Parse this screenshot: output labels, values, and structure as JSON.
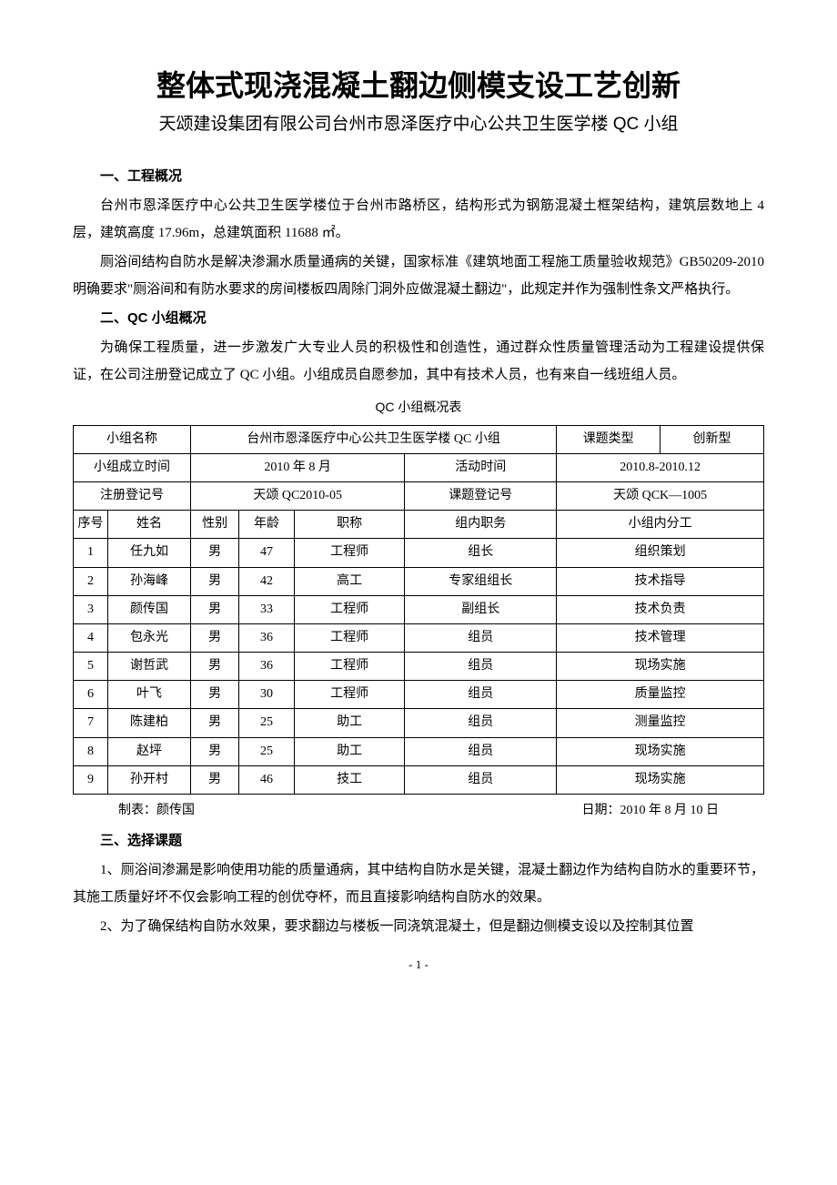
{
  "title_main": "整体式现浇混凝土翻边侧模支设工艺创新",
  "title_sub": "天颂建设集团有限公司台州市恩泽医疗中心公共卫生医学楼 QC 小组",
  "section1": {
    "head": "一、工程概况",
    "p1_a": "台州市恩泽医疗中心公共卫生医学楼位于台州市路桥区，结构形式为钢筋混凝土框架结构，建筑层数地上 4 层，建筑高度 17.96m，总建筑面积 11688 ㎡",
    "p1_b": "。",
    "p2": "厕浴间结构自防水是解决渗漏水质量通病的关键，国家标准《建筑地面工程施工质量验收规范》GB50209-2010 明确要求\"厕浴间和有防水要求的房间楼板四周除门洞外应做混凝土翻边\"，此规定并作为强制性条文严格执行。"
  },
  "section2": {
    "head": "二、QC 小组概况",
    "p1": "为确保工程质量，进一步激发广大专业人员的积极性和创造性，通过群众性质量管理活动为工程建设提供保证，在公司注册登记成立了 QC 小组。小组成员自愿参加，其中有技术人员，也有来自一线班组人员。"
  },
  "table": {
    "caption": "QC 小组概况表",
    "r1": {
      "c1": "小组名称",
      "c2": "台州市恩泽医疗中心公共卫生医学楼 QC 小组",
      "c3": "课题类型",
      "c4": "创新型"
    },
    "r2": {
      "c1": "小组成立时间",
      "c2": "2010 年 8 月",
      "c3": "活动时间",
      "c4": "2010.8-2010.12"
    },
    "r3": {
      "c1": "注册登记号",
      "c2": "天颂 QC2010-05",
      "c3": "课题登记号",
      "c4": "天颂 QCK—1005"
    },
    "header": {
      "c1": "序号",
      "c2": "姓名",
      "c3": "性别",
      "c4": "年龄",
      "c5": "职称",
      "c6": "组内职务",
      "c7": "小组内分工"
    },
    "rows": [
      {
        "c1": "1",
        "c2": "任九如",
        "c3": "男",
        "c4": "47",
        "c5": "工程师",
        "c6": "组长",
        "c7": "组织策划"
      },
      {
        "c1": "2",
        "c2": "孙海峰",
        "c3": "男",
        "c4": "42",
        "c5": "高工",
        "c6": "专家组组长",
        "c7": "技术指导"
      },
      {
        "c1": "3",
        "c2": "颜传国",
        "c3": "男",
        "c4": "33",
        "c5": "工程师",
        "c6": "副组长",
        "c7": "技术负责"
      },
      {
        "c1": "4",
        "c2": "包永光",
        "c3": "男",
        "c4": "36",
        "c5": "工程师",
        "c6": "组员",
        "c7": "技术管理"
      },
      {
        "c1": "5",
        "c2": "谢哲武",
        "c3": "男",
        "c4": "36",
        "c5": "工程师",
        "c6": "组员",
        "c7": "现场实施"
      },
      {
        "c1": "6",
        "c2": "叶飞",
        "c3": "男",
        "c4": "30",
        "c5": "工程师",
        "c6": "组员",
        "c7": "质量监控"
      },
      {
        "c1": "7",
        "c2": "陈建柏",
        "c3": "男",
        "c4": "25",
        "c5": "助工",
        "c6": "组员",
        "c7": "测量监控"
      },
      {
        "c1": "8",
        "c2": "赵坪",
        "c3": "男",
        "c4": "25",
        "c5": "助工",
        "c6": "组员",
        "c7": "现场实施"
      },
      {
        "c1": "9",
        "c2": "孙开村",
        "c3": "男",
        "c4": "46",
        "c5": "技工",
        "c6": "组员",
        "c7": "现场实施"
      }
    ],
    "footer_left": "制表：颜传国",
    "footer_right": "日期：2010 年 8 月 10 日"
  },
  "section3": {
    "head": "三、选择课题",
    "p1": "1、厕浴间渗漏是影响使用功能的质量通病，其中结构自防水是关键，混凝土翻边作为结构自防水的重要环节，其施工质量好坏不仅会影响工程的创优夺杯，而且直接影响结构自防水的效果。",
    "p2": "2、为了确保结构自防水效果，要求翻边与楼板一同浇筑混凝土，但是翻边侧模支设以及控制其位置"
  },
  "page_num": "- 1 -",
  "style": {
    "colors": {
      "text": "#000000",
      "background": "#ffffff",
      "border": "#000000"
    },
    "col_widths_pct": [
      5,
      12,
      7,
      8,
      16,
      22,
      30
    ]
  }
}
